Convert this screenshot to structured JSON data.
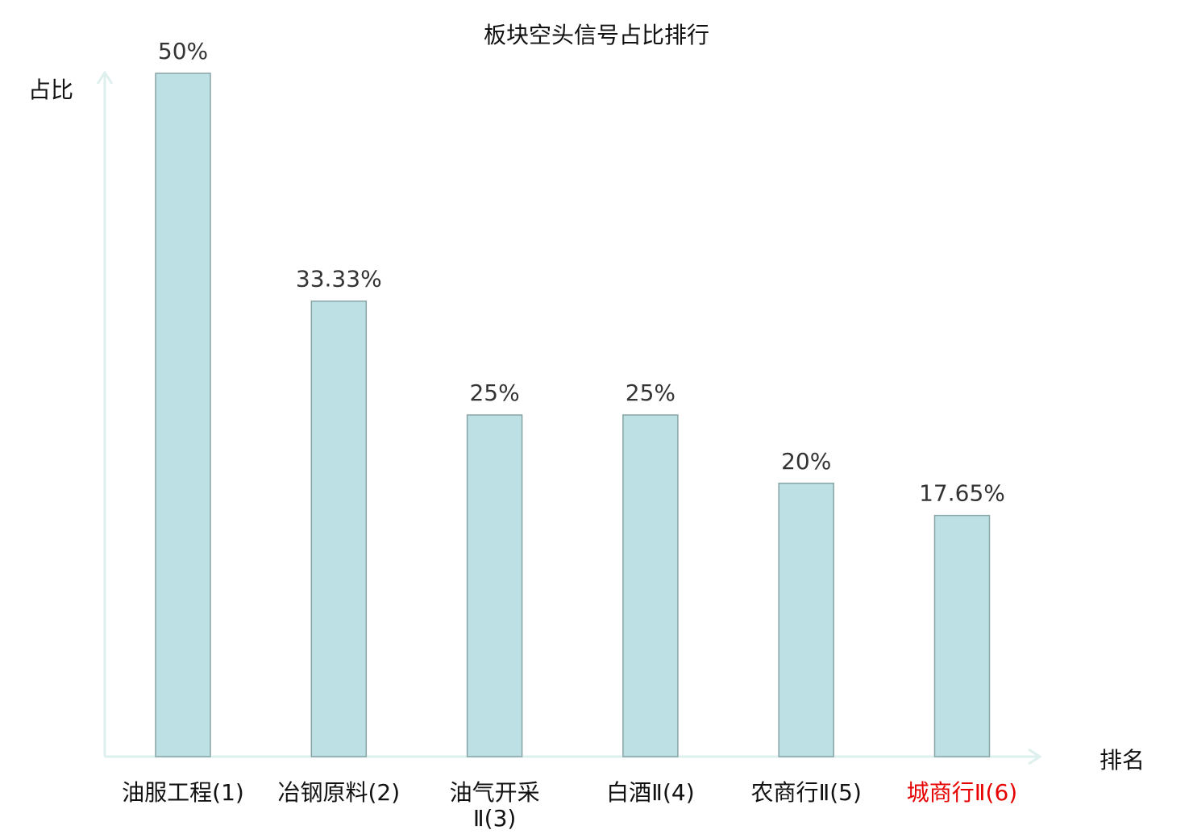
{
  "chart_data": {
    "type": "bar",
    "title": "板块空头信号占比排行",
    "xlabel": "排名",
    "ylabel": "占比",
    "ylim": [
      0,
      50
    ],
    "grid": false,
    "categories": [
      [
        "油服工程(1)"
      ],
      [
        "冶钢原料(2)"
      ],
      [
        "油气开采",
        "Ⅱ(3)"
      ],
      [
        "白酒Ⅱ(4)"
      ],
      [
        "农商行Ⅱ(5)"
      ],
      [
        "城商行Ⅱ(6)"
      ]
    ],
    "values": [
      50,
      33.33,
      25,
      25,
      20,
      17.65
    ],
    "value_labels": [
      "50%",
      "33.33%",
      "25%",
      "25%",
      "20%",
      "17.65%"
    ],
    "highlight_index": 5,
    "colors": {
      "bar_fill": "#bce0e3",
      "bar_stroke": "#88a4a6",
      "axis": "#ddf0ee",
      "label": "#333333",
      "highlight": "#e60000"
    }
  }
}
